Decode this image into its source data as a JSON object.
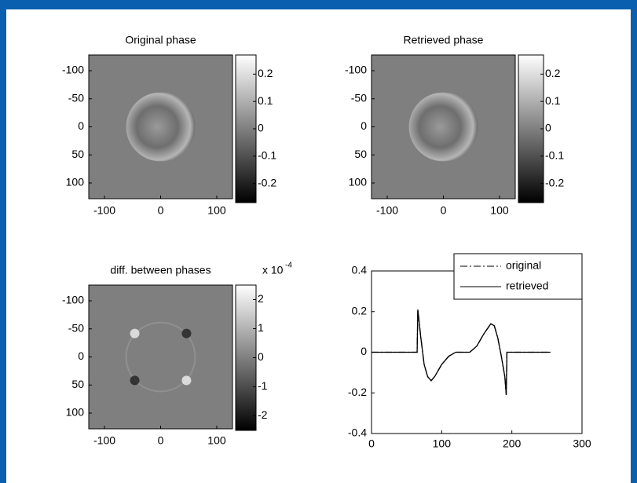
{
  "chart_data": [
    {
      "type": "image",
      "title": "Original phase",
      "xlim": [
        -128,
        128
      ],
      "ylim": [
        128,
        -128
      ],
      "xticks": [
        -100,
        0,
        100
      ],
      "yticks": [
        -100,
        -50,
        0,
        50,
        100
      ],
      "colorbar": {
        "clim": [
          -0.27,
          0.27
        ],
        "ticks": [
          0.2,
          0.1,
          0,
          -0.1,
          -0.2
        ]
      }
    },
    {
      "type": "image",
      "title": "Retrieved phase",
      "xlim": [
        -128,
        128
      ],
      "ylim": [
        128,
        -128
      ],
      "xticks": [
        -100,
        0,
        100
      ],
      "yticks": [
        -100,
        -50,
        0,
        50,
        100
      ],
      "colorbar": {
        "clim": [
          -0.27,
          0.27
        ],
        "ticks": [
          0.2,
          0.1,
          0,
          -0.1,
          -0.2
        ]
      }
    },
    {
      "type": "image",
      "title": "diff. between phases",
      "xlim": [
        -128,
        128
      ],
      "ylim": [
        128,
        -128
      ],
      "xticks": [
        -100,
        0,
        100
      ],
      "yticks": [
        -100,
        -50,
        0,
        50,
        100
      ],
      "colorbar": {
        "clim": [
          -2.5,
          2.5
        ],
        "ticks": [
          2,
          1,
          0,
          -1,
          -2
        ],
        "exponent_base": "x 10",
        "exponent": "-4"
      }
    },
    {
      "type": "line",
      "xlim": [
        0,
        300
      ],
      "ylim": [
        -0.4,
        0.4
      ],
      "xticks": [
        0,
        100,
        200,
        300
      ],
      "yticks": [
        -0.4,
        -0.2,
        0,
        0.2,
        0.4
      ],
      "legend": "upper right",
      "x": [
        0,
        65,
        66,
        70,
        75,
        80,
        85,
        90,
        100,
        110,
        120,
        130,
        140,
        150,
        160,
        170,
        175,
        180,
        185,
        190,
        192,
        193,
        255
      ],
      "series": [
        {
          "name": "original",
          "color": "#000000",
          "linestyle": "dashdot",
          "values": [
            0,
            0,
            0.21,
            0.08,
            -0.06,
            -0.12,
            -0.14,
            -0.12,
            -0.06,
            -0.02,
            0,
            0,
            0,
            0.03,
            0.09,
            0.14,
            0.13,
            0.07,
            -0.02,
            -0.12,
            -0.21,
            0,
            0
          ]
        },
        {
          "name": "retrieved",
          "color": "#000000",
          "linestyle": "solid",
          "values": [
            0,
            0,
            0.21,
            0.08,
            -0.06,
            -0.12,
            -0.14,
            -0.12,
            -0.06,
            -0.02,
            0,
            0,
            0,
            0.03,
            0.09,
            0.14,
            0.13,
            0.07,
            -0.02,
            -0.12,
            -0.21,
            0,
            0
          ]
        }
      ]
    }
  ]
}
